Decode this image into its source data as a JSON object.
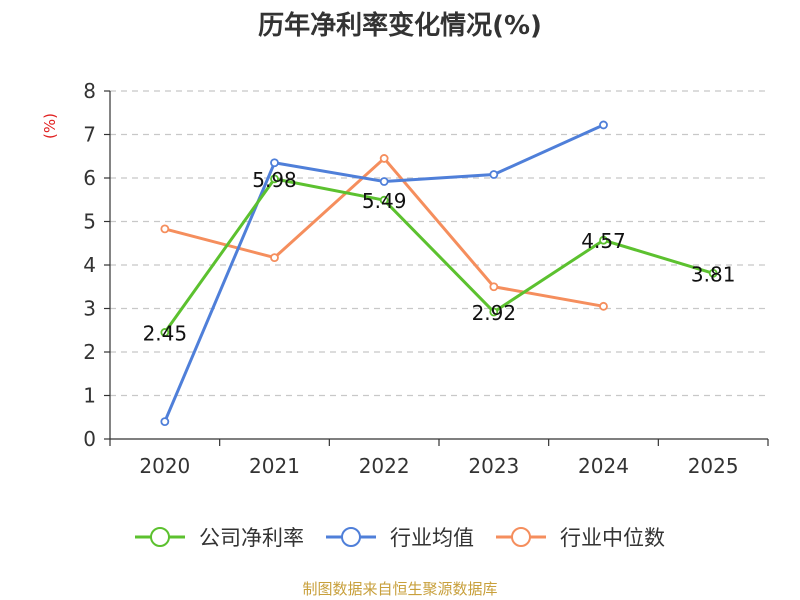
{
  "chart_data": {
    "type": "line",
    "title": "历年净利率变化情况(%)",
    "ylabel": "(%)",
    "xlabel": "",
    "categories": [
      "2020",
      "2021",
      "2022",
      "2023",
      "2024",
      "2025"
    ],
    "ylim": [
      0,
      8
    ],
    "yticks": [
      0,
      1,
      2,
      3,
      4,
      5,
      6,
      7,
      8
    ],
    "grid": true,
    "legend_position": "bottom",
    "series": [
      {
        "name": "公司净利率",
        "color": "#5cc12f",
        "values": [
          2.45,
          5.98,
          5.49,
          2.92,
          4.57,
          3.81
        ],
        "labels": [
          "2.45",
          "5.98",
          "5.49",
          "2.92",
          "4.57",
          "3.81"
        ]
      },
      {
        "name": "行业均值",
        "color": "#4f7fd9",
        "values": [
          0.4,
          6.35,
          5.92,
          6.08,
          7.22,
          null
        ]
      },
      {
        "name": "行业中位数",
        "color": "#f58e5d",
        "values": [
          4.83,
          4.17,
          6.45,
          3.5,
          3.05,
          null
        ]
      }
    ],
    "source": "制图数据来自恒生聚源数据库"
  }
}
